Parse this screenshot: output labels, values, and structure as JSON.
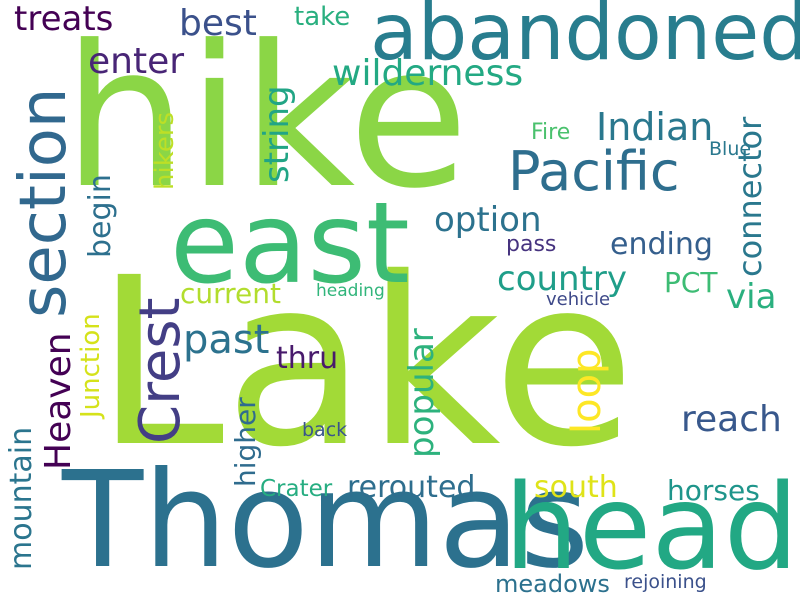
{
  "words": [
    {
      "text": "Lake",
      "color": "#a2da37"
    },
    {
      "text": "hike",
      "color": "#8bd646"
    },
    {
      "text": "Thomas",
      "color": "#2c718e"
    },
    {
      "text": "head",
      "color": "#22a884"
    },
    {
      "text": "east",
      "color": "#3dbc74"
    },
    {
      "text": "abandoned",
      "color": "#287d8e"
    },
    {
      "text": "Pacific",
      "color": "#2e6e8e"
    },
    {
      "text": "section",
      "color": "#31688e"
    },
    {
      "text": "Crest",
      "color": "#433e85"
    },
    {
      "text": "wilderness",
      "color": "#23a983"
    },
    {
      "text": "treats",
      "color": "#440154"
    },
    {
      "text": "best",
      "color": "#3b518b"
    },
    {
      "text": "enter",
      "color": "#482576"
    },
    {
      "text": "take",
      "color": "#29af7f"
    },
    {
      "text": "Indian",
      "color": "#2a788e"
    },
    {
      "text": "Fire",
      "color": "#4ac16d"
    },
    {
      "text": "Blue",
      "color": "#2a788e"
    },
    {
      "text": "connector",
      "color": "#2a788e"
    },
    {
      "text": "option",
      "color": "#2c728e"
    },
    {
      "text": "pass",
      "color": "#46337f"
    },
    {
      "text": "ending",
      "color": "#355f8d"
    },
    {
      "text": "country",
      "color": "#1f9e89"
    },
    {
      "text": "PCT",
      "color": "#3dbc74"
    },
    {
      "text": "via",
      "color": "#2ab07f"
    },
    {
      "text": "heading",
      "color": "#31b57b"
    },
    {
      "text": "vehicle",
      "color": "#3e4989"
    },
    {
      "text": "current",
      "color": "#b2dd2d"
    },
    {
      "text": "past",
      "color": "#2c728e"
    },
    {
      "text": "thru",
      "color": "#481a6c"
    },
    {
      "text": "loop",
      "color": "#fde725"
    },
    {
      "text": "popular",
      "color": "#2db27d"
    },
    {
      "text": "reach",
      "color": "#38588c"
    },
    {
      "text": "back",
      "color": "#39558c"
    },
    {
      "text": "higher",
      "color": "#2f6c8e"
    },
    {
      "text": "Crater",
      "color": "#26ad81"
    },
    {
      "text": "rerouted",
      "color": "#2e6e8e"
    },
    {
      "text": "south",
      "color": "#dfe318"
    },
    {
      "text": "horses",
      "color": "#1f958b"
    },
    {
      "text": "meadows",
      "color": "#2c718e"
    },
    {
      "text": "rejoining",
      "color": "#3b518b"
    },
    {
      "text": "mountain",
      "color": "#2b758e"
    },
    {
      "text": "Heaven",
      "color": "#440154"
    },
    {
      "text": "Junction",
      "color": "#d5e21a"
    },
    {
      "text": "begin",
      "color": "#2d708e"
    },
    {
      "text": "hikers",
      "color": "#bddf26"
    },
    {
      "text": "string",
      "color": "#21a585"
    }
  ]
}
